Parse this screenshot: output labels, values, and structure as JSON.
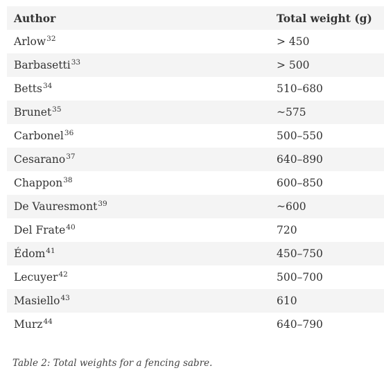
{
  "table": {
    "headers": {
      "author": "Author",
      "weight": "Total weight (g)"
    },
    "rows": [
      {
        "author": "Arlow",
        "ref": "32",
        "weight": "> 450"
      },
      {
        "author": "Barbasetti",
        "ref": "33",
        "weight": "> 500"
      },
      {
        "author": "Betts",
        "ref": "34",
        "weight": "510–680"
      },
      {
        "author": "Brunet",
        "ref": "35",
        "weight": "~575"
      },
      {
        "author": "Carbonel",
        "ref": "36",
        "weight": "500–550"
      },
      {
        "author": "Cesarano",
        "ref": "37",
        "weight": "640–890"
      },
      {
        "author": "Chappon",
        "ref": "38",
        "weight": "600–850"
      },
      {
        "author": "De Vauresmont",
        "ref": "39",
        "weight": "~600"
      },
      {
        "author": "Del Frate",
        "ref": "40",
        "weight": "720"
      },
      {
        "author": "Édom",
        "ref": "41",
        "weight": "450–750"
      },
      {
        "author": "Lecuyer",
        "ref": "42",
        "weight": "500–700"
      },
      {
        "author": "Masiello",
        "ref": "43",
        "weight": "610"
      },
      {
        "author": "Murz",
        "ref": "44",
        "weight": "640–790"
      }
    ]
  },
  "caption": "Table 2: Total weights for a fencing sabre."
}
